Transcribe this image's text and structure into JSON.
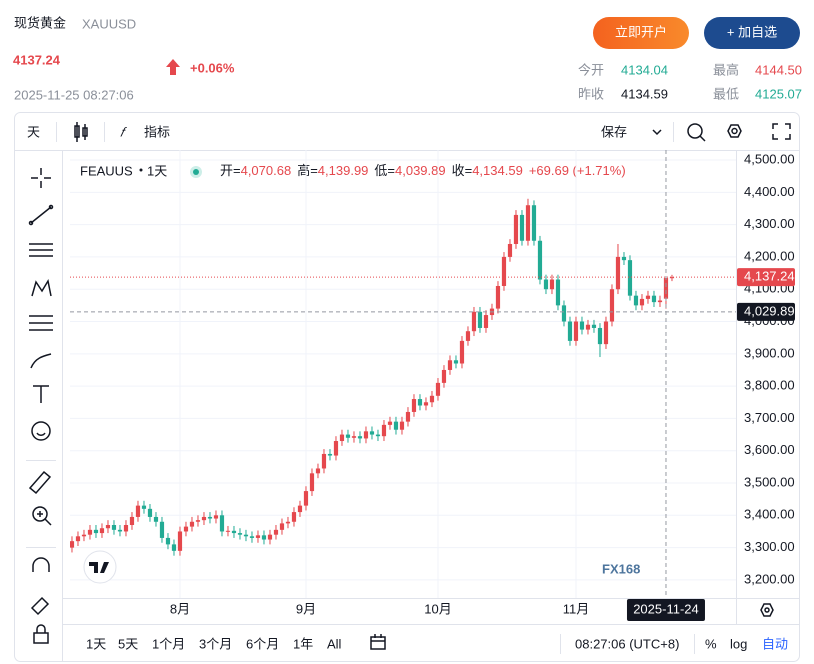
{
  "quote": {
    "name": "现货黄金",
    "code": "XAUUSD",
    "price": "4137.24",
    "change": "+0.06%",
    "time": "2025-11-25 08:27:06",
    "buttons": [
      "立即开户",
      "+ 加自选"
    ],
    "stats": [
      {
        "label": "今开",
        "value": "4134.04"
      },
      {
        "label": "最高",
        "value": "4144.50"
      },
      {
        "label": "昨收",
        "value": "4134.59"
      },
      {
        "label": "最低",
        "value": "4125.07"
      }
    ]
  },
  "toolbar": {
    "interval": "天",
    "indicators": "指标",
    "save": "保存"
  },
  "bottom_bar": {
    "ranges": [
      "1天",
      "5天",
      "1个月",
      "3个月",
      "6个月",
      "1年",
      "All"
    ],
    "clock": "08:27:06 (UTC+8)",
    "percent": "%",
    "log": "log",
    "auto": "自动"
  },
  "chart_data": {
    "type": "candlestick",
    "symbol": "FEAUUS",
    "interval": "1天",
    "legend": [
      {
        "label": "开=",
        "value": "4,070.68"
      },
      {
        "label": "高=",
        "value": "4,139.99"
      },
      {
        "label": "低=",
        "value": "4,039.89"
      },
      {
        "label": "收=",
        "value": "4,134.59"
      }
    ],
    "change": "+69.69 (+1.71%)",
    "watermark": "FX168",
    "up_color": "#e5484d",
    "down_color": "#22ab94",
    "open": [
      3300,
      3320,
      3335,
      3340,
      3355,
      3345,
      3360,
      3370,
      3355,
      3350,
      3370,
      3395,
      3430,
      3420,
      3395,
      3380,
      3330,
      3310,
      3290,
      3350,
      3365,
      3380,
      3385,
      3395,
      3390,
      3400,
      3350,
      3352,
      3345,
      3340,
      3335,
      3330,
      3338,
      3325,
      3340,
      3355,
      3375,
      3380,
      3410,
      3430,
      3475,
      3530,
      3545,
      3590,
      3585,
      3630,
      3650,
      3640,
      3645,
      3638,
      3660,
      3650,
      3645,
      3680,
      3690,
      3665,
      3690,
      3720,
      3760,
      3740,
      3750,
      3770,
      3810,
      3850,
      3880,
      3870,
      3940,
      3970,
      4030,
      3980,
      4020,
      4040,
      4110,
      4200,
      4240,
      4330,
      4250,
      4360,
      4250,
      4130,
      4100,
      4130,
      4050,
      4000,
      3940,
      4000,
      3975,
      3990,
      3980,
      3930,
      4000,
      4100,
      4200,
      4190,
      4080,
      4050,
      4070,
      4080,
      4060,
      4070.68,
      4134.04
    ],
    "high": [
      3335,
      3350,
      3355,
      3370,
      3370,
      3375,
      3385,
      3385,
      3370,
      3385,
      3410,
      3445,
      3445,
      3435,
      3410,
      3395,
      3345,
      3325,
      3365,
      3380,
      3395,
      3400,
      3410,
      3410,
      3415,
      3415,
      3367,
      3367,
      3360,
      3355,
      3350,
      3353,
      3353,
      3355,
      3370,
      3390,
      3395,
      3425,
      3445,
      3490,
      3545,
      3560,
      3605,
      3605,
      3645,
      3665,
      3665,
      3660,
      3660,
      3675,
      3675,
      3665,
      3695,
      3705,
      3705,
      3705,
      3735,
      3775,
      3775,
      3765,
      3785,
      3825,
      3865,
      3895,
      3895,
      3955,
      3985,
      4045,
      4045,
      4035,
      4055,
      4125,
      4215,
      4255,
      4345,
      4345,
      4380,
      4375,
      4265,
      4145,
      4145,
      4145,
      4065,
      4015,
      4015,
      4015,
      4005,
      4005,
      3995,
      4015,
      4115,
      4240,
      4215,
      4205,
      4095,
      4085,
      4095,
      4095,
      4080,
      4139.99,
      4144.5
    ],
    "low": [
      3285,
      3305,
      3320,
      3325,
      3330,
      3330,
      3345,
      3340,
      3335,
      3335,
      3355,
      3380,
      3405,
      3380,
      3365,
      3315,
      3295,
      3275,
      3275,
      3335,
      3350,
      3365,
      3370,
      3375,
      3375,
      3335,
      3335,
      3330,
      3325,
      3320,
      3315,
      3315,
      3310,
      3310,
      3325,
      3340,
      3360,
      3365,
      3395,
      3415,
      3460,
      3515,
      3530,
      3570,
      3570,
      3615,
      3625,
      3625,
      3623,
      3623,
      3635,
      3630,
      3630,
      3665,
      3650,
      3650,
      3675,
      3705,
      3725,
      3725,
      3735,
      3755,
      3795,
      3835,
      3855,
      3855,
      3925,
      3955,
      3965,
      3965,
      4005,
      4025,
      4095,
      4185,
      4225,
      4235,
      4235,
      4235,
      4115,
      4085,
      4085,
      4035,
      3985,
      3925,
      3925,
      3960,
      3960,
      3965,
      3890,
      3915,
      3985,
      4085,
      4175,
      4065,
      4035,
      4035,
      4055,
      4045,
      4045,
      4039.89,
      4125.07
    ],
    "close": [
      3320,
      3335,
      3340,
      3355,
      3345,
      3360,
      3370,
      3355,
      3350,
      3370,
      3395,
      3430,
      3420,
      3395,
      3380,
      3330,
      3310,
      3290,
      3350,
      3365,
      3380,
      3385,
      3395,
      3390,
      3400,
      3350,
      3352,
      3345,
      3340,
      3335,
      3330,
      3338,
      3325,
      3340,
      3355,
      3375,
      3380,
      3410,
      3430,
      3475,
      3530,
      3545,
      3590,
      3585,
      3630,
      3650,
      3640,
      3645,
      3638,
      3660,
      3650,
      3645,
      3680,
      3690,
      3665,
      3690,
      3720,
      3760,
      3740,
      3750,
      3770,
      3810,
      3850,
      3880,
      3870,
      3940,
      3970,
      4030,
      3980,
      4020,
      4040,
      4110,
      4200,
      4240,
      4330,
      4250,
      4360,
      4250,
      4130,
      4100,
      4130,
      4050,
      4000,
      3940,
      4000,
      3975,
      3990,
      3980,
      3930,
      4000,
      4100,
      4200,
      4190,
      4080,
      4050,
      4070,
      4080,
      4060,
      4065,
      4134.59,
      4137.24
    ],
    "xlim": [
      -0.33,
      110.67
    ],
    "xticks": [
      {
        "value": 18,
        "label": "8月"
      },
      {
        "value": 39,
        "label": "9月"
      },
      {
        "value": 61,
        "label": "10月"
      },
      {
        "value": 84,
        "label": "11月"
      }
    ],
    "ylim": [
      3144,
      4531
    ],
    "yticks": [
      {
        "value": 3200,
        "label": "3,200.00"
      },
      {
        "value": 3300,
        "label": "3,300.00"
      },
      {
        "value": 3400,
        "label": "3,400.00"
      },
      {
        "value": 3500,
        "label": "3,500.00"
      },
      {
        "value": 3600,
        "label": "3,600.00"
      },
      {
        "value": 3700,
        "label": "3,700.00"
      },
      {
        "value": 3800,
        "label": "3,800.00"
      },
      {
        "value": 3900,
        "label": "3,900.00"
      },
      {
        "value": 4000,
        "label": "4,000.00"
      },
      {
        "value": 4100,
        "label": "4,100.00"
      },
      {
        "value": 4200,
        "label": "4,200.00"
      },
      {
        "value": 4300,
        "label": "4,300.00"
      },
      {
        "value": 4400,
        "label": "4,400.00"
      },
      {
        "value": 4500,
        "label": "4,500.00"
      }
    ],
    "grid": true,
    "price_line": {
      "value": 4137.24,
      "label": "4,137.24"
    },
    "crosshair": {
      "x": {
        "value": 99,
        "label": "2025-11-24"
      },
      "y": {
        "value": 4029.89,
        "label": "4,029.89"
      }
    }
  }
}
